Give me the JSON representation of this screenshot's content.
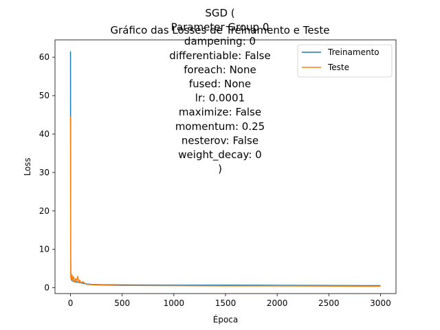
{
  "chart_data": {
    "type": "line",
    "title_lines": [
      "SGD (",
      "Parameter Group 0",
      "dampening: 0",
      "differentiable: False",
      "foreach: None",
      "fused: None",
      "lr: 0.0001",
      "maximize: False",
      "momentum: 0.25",
      "nesterov: False",
      "weight_decay: 0",
      ")"
    ],
    "subtitle": "Gráfico das Losses de Treinamento e Teste",
    "xlabel": "Época",
    "ylabel": "Loss",
    "xlim": [
      -150,
      3150
    ],
    "ylim": [
      -1.5,
      64.5
    ],
    "xticks": [
      0,
      500,
      1000,
      1500,
      2000,
      2500,
      3000
    ],
    "yticks": [
      0,
      10,
      20,
      30,
      40,
      50,
      60
    ],
    "grid": false,
    "legend": "top-right",
    "series": [
      {
        "name": "Treinamento",
        "color": "#1f77b4",
        "x": [
          0,
          1,
          2,
          3,
          5,
          10,
          20,
          40,
          60,
          80,
          100,
          150,
          200,
          300,
          500,
          1000,
          1500,
          2000,
          2500,
          3000
        ],
        "y": [
          61.5,
          30.0,
          8.0,
          3.5,
          2.5,
          2.0,
          1.8,
          1.6,
          1.5,
          1.4,
          1.3,
          1.0,
          0.9,
          0.8,
          0.75,
          0.7,
          0.68,
          0.65,
          0.6,
          0.55
        ]
      },
      {
        "name": "Teste",
        "color": "#ff7f0e",
        "x": [
          0,
          1,
          2,
          3,
          5,
          10,
          15,
          20,
          30,
          40,
          50,
          60,
          70,
          80,
          90,
          100,
          120,
          150,
          200,
          300,
          500,
          1000,
          1500,
          2000,
          2500,
          3000
        ],
        "y": [
          44.5,
          20.0,
          5.0,
          2.5,
          3.2,
          2.2,
          3.4,
          1.8,
          2.9,
          1.5,
          2.4,
          1.7,
          3.0,
          1.4,
          2.0,
          1.3,
          1.6,
          0.9,
          0.8,
          0.7,
          0.6,
          0.55,
          0.5,
          0.5,
          0.45,
          0.4
        ]
      }
    ]
  }
}
